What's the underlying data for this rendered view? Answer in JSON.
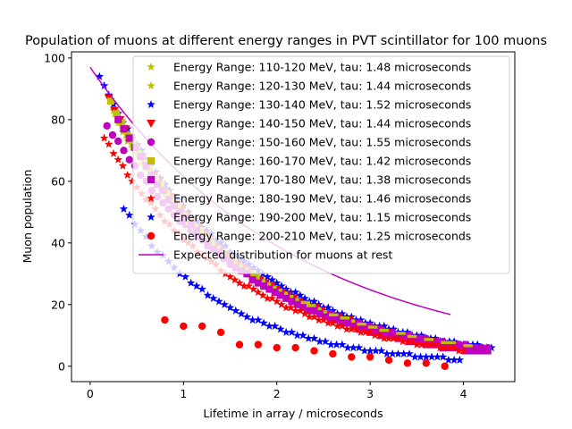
{
  "chart_data": {
    "type": "scatter",
    "title": "Population of muons at different energy ranges in PVT scintillator for 100 muons",
    "xlabel": "Lifetime in array / microseconds",
    "ylabel": "Muon population",
    "xlim": [
      -0.2,
      4.55
    ],
    "ylim": [
      -5,
      102
    ],
    "xticks": [
      "0",
      "1",
      "2",
      "3",
      "4"
    ],
    "yticks": [
      "0",
      "20",
      "40",
      "60",
      "80",
      "100"
    ],
    "grid": false,
    "legend_position": "top-right",
    "series": [
      {
        "name": "Energy Range: 110-120 MeV, tau: 1.48 microseconds",
        "marker": "star",
        "color": "#bfbf00",
        "tau": 1.48,
        "n0": 98,
        "x_start": 0.25,
        "x_end": 4.15,
        "step": 0.05
      },
      {
        "name": "Energy Range: 120-130 MeV, tau: 1.44 microseconds",
        "marker": "star",
        "color": "#bfbf00",
        "tau": 1.44,
        "n0": 97,
        "x_start": 0.3,
        "x_end": 4.1,
        "step": 0.05
      },
      {
        "name": "Energy Range: 130-140 MeV, tau: 1.52 microseconds",
        "marker": "star",
        "color": "#0000ff",
        "tau": 1.52,
        "n0": 100,
        "x_start": 0.1,
        "x_end": 4.3,
        "step": 0.05
      },
      {
        "name": "Energy Range: 140-150 MeV, tau: 1.44 microseconds",
        "marker": "triangle-down",
        "color": "#ff0000",
        "tau": 1.44,
        "n0": 100,
        "x_start": 0.2,
        "x_end": 4.1,
        "step": 0.06
      },
      {
        "name": "Energy Range: 150-160 MeV, tau: 1.55 microseconds",
        "marker": "circle",
        "color": "#bf00bf",
        "tau": 1.55,
        "n0": 88,
        "x_start": 0.18,
        "x_end": 4.3,
        "step": 0.06
      },
      {
        "name": "Energy Range: 160-170 MeV, tau: 1.42 microseconds",
        "marker": "square",
        "color": "#bfbf00",
        "tau": 1.42,
        "n0": 100,
        "x_start": 0.22,
        "x_end": 4.1,
        "step": 0.06
      },
      {
        "name": "Energy Range: 170-180 MeV, tau: 1.38 microseconds",
        "marker": "square",
        "color": "#bf00bf",
        "tau": 1.38,
        "n0": 100,
        "x_start": 0.3,
        "x_end": 4.3,
        "step": 0.06
      },
      {
        "name": "Energy Range: 180-190 MeV, tau: 1.46 microseconds",
        "marker": "star",
        "color": "#ff0000",
        "tau": 1.46,
        "n0": 82,
        "x_start": 0.15,
        "x_end": 4.0,
        "step": 0.05
      },
      {
        "name": "Energy Range: 190-200 MeV, tau: 1.15 microseconds",
        "marker": "star",
        "color": "#0000ff",
        "tau": 1.15,
        "n0": 70,
        "x_start": 0.36,
        "x_end": 4.0,
        "step": 0.06
      },
      {
        "name": "Energy Range: 200-210 MeV, tau: 1.25 microseconds",
        "marker": "circle",
        "color": "#ff0000",
        "points": [
          [
            0.8,
            15
          ],
          [
            1.0,
            13
          ],
          [
            1.2,
            13
          ],
          [
            1.4,
            11
          ],
          [
            1.6,
            7
          ],
          [
            1.8,
            7
          ],
          [
            2.0,
            6
          ],
          [
            2.2,
            6
          ],
          [
            2.4,
            5
          ],
          [
            2.6,
            4
          ],
          [
            2.8,
            3
          ],
          [
            3.0,
            3
          ],
          [
            3.2,
            2
          ],
          [
            3.4,
            1
          ],
          [
            3.6,
            1
          ],
          [
            3.8,
            0
          ]
        ]
      },
      {
        "name": "Expected distribution for muons at rest",
        "marker": "line",
        "color": "#bf00bf",
        "tau": 2.2,
        "n0": 97,
        "x_start": 0.0,
        "x_end": 3.87
      }
    ]
  }
}
